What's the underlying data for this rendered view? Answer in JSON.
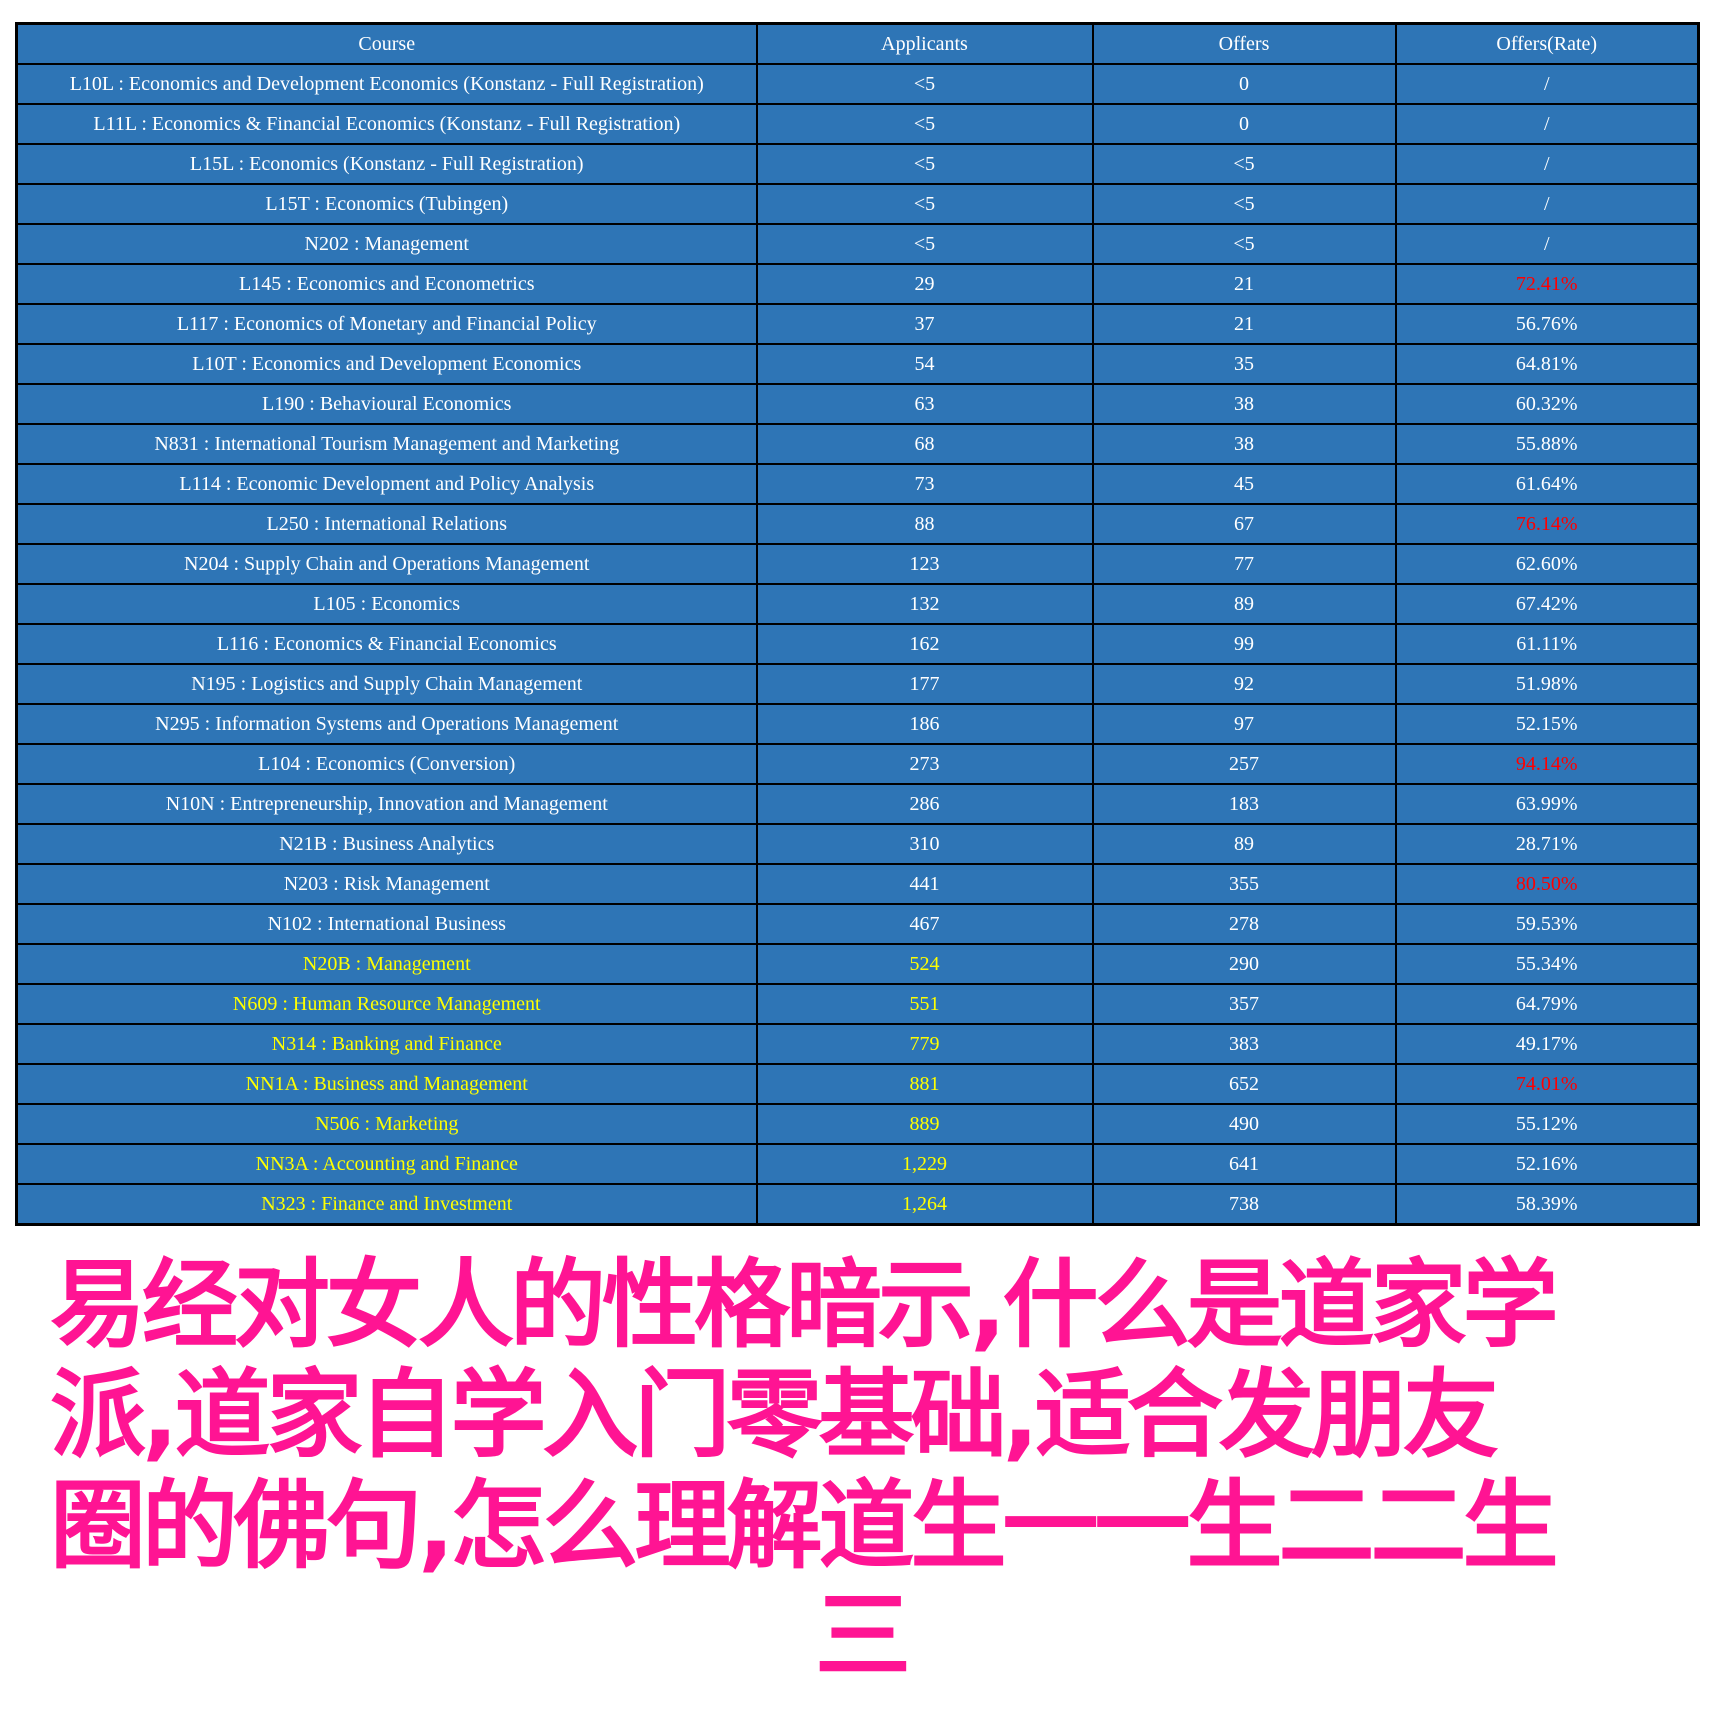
{
  "table": {
    "headers": [
      "Course",
      "Applicants",
      "Offers",
      "Offers(Rate)"
    ],
    "rows": [
      {
        "course": "L10L : Economics and Development Economics (Konstanz - Full Registration)",
        "applicants": "<5",
        "offers": "0",
        "rate": "/"
      },
      {
        "course": "L11L : Economics & Financial Economics (Konstanz - Full Registration)",
        "applicants": "<5",
        "offers": "0",
        "rate": "/"
      },
      {
        "course": "L15L : Economics (Konstanz - Full Registration)",
        "applicants": "<5",
        "offers": "<5",
        "rate": "/"
      },
      {
        "course": "L15T : Economics (Tubingen)",
        "applicants": "<5",
        "offers": "<5",
        "rate": "/"
      },
      {
        "course": "N202 : Management",
        "applicants": "<5",
        "offers": "<5",
        "rate": "/"
      },
      {
        "course": "L145 : Economics and Econometrics",
        "applicants": "29",
        "offers": "21",
        "rate": "72.41%",
        "rate_red": true
      },
      {
        "course": "L117 : Economics of Monetary and Financial Policy",
        "applicants": "37",
        "offers": "21",
        "rate": "56.76%"
      },
      {
        "course": "L10T : Economics and Development Economics",
        "applicants": "54",
        "offers": "35",
        "rate": "64.81%"
      },
      {
        "course": "L190 : Behavioural Economics",
        "applicants": "63",
        "offers": "38",
        "rate": "60.32%"
      },
      {
        "course": "N831 : International Tourism Management and Marketing",
        "applicants": "68",
        "offers": "38",
        "rate": "55.88%"
      },
      {
        "course": "L114 : Economic Development and Policy Analysis",
        "applicants": "73",
        "offers": "45",
        "rate": "61.64%"
      },
      {
        "course": "L250 : International Relations",
        "applicants": "88",
        "offers": "67",
        "rate": "76.14%",
        "rate_red": true
      },
      {
        "course": "N204 : Supply Chain and Operations Management",
        "applicants": "123",
        "offers": "77",
        "rate": "62.60%"
      },
      {
        "course": "L105 : Economics",
        "applicants": "132",
        "offers": "89",
        "rate": "67.42%"
      },
      {
        "course": "L116 : Economics & Financial Economics",
        "applicants": "162",
        "offers": "99",
        "rate": "61.11%"
      },
      {
        "course": "N195 : Logistics and Supply Chain Management",
        "applicants": "177",
        "offers": "92",
        "rate": "51.98%"
      },
      {
        "course": "N295 : Information Systems and Operations Management",
        "applicants": "186",
        "offers": "97",
        "rate": "52.15%"
      },
      {
        "course": "L104 : Economics (Conversion)",
        "applicants": "273",
        "offers": "257",
        "rate": "94.14%",
        "rate_red": true
      },
      {
        "course": "N10N : Entrepreneurship, Innovation and Management",
        "applicants": "286",
        "offers": "183",
        "rate": "63.99%"
      },
      {
        "course": "N21B : Business Analytics",
        "applicants": "310",
        "offers": "89",
        "rate": "28.71%"
      },
      {
        "course": "N203 : Risk Management",
        "applicants": "441",
        "offers": "355",
        "rate": "80.50%",
        "rate_red": true
      },
      {
        "course": "N102 : International Business",
        "applicants": "467",
        "offers": "278",
        "rate": "59.53%"
      },
      {
        "course": "N20B : Management",
        "applicants": "524",
        "offers": "290",
        "rate": "55.34%",
        "highlight": true
      },
      {
        "course": "N609 : Human Resource Management",
        "applicants": "551",
        "offers": "357",
        "rate": "64.79%",
        "highlight": true
      },
      {
        "course": "N314 : Banking and Finance",
        "applicants": "779",
        "offers": "383",
        "rate": "49.17%",
        "highlight": true
      },
      {
        "course": "NN1A : Business and Management",
        "applicants": "881",
        "offers": "652",
        "rate": "74.01%",
        "highlight": true,
        "rate_red": true
      },
      {
        "course": "N506 : Marketing",
        "applicants": "889",
        "offers": "490",
        "rate": "55.12%",
        "highlight": true
      },
      {
        "course": "NN3A : Accounting and Finance",
        "applicants": "1,229",
        "offers": "641",
        "rate": "52.16%",
        "highlight": true
      },
      {
        "course": "N323 : Finance and Investment",
        "applicants": "1,264",
        "offers": "738",
        "rate": "58.39%",
        "highlight": true
      }
    ]
  },
  "overlay": {
    "lines": [
      "易经对女人的性格暗示,什么是道家学",
      "派,道家自学入门零基础,适合发朋友",
      "圈的佛句,怎么理解道生一一生二二生",
      "三"
    ]
  },
  "colors": {
    "table_bg": "#2e75b6",
    "highlight_text": "#ffff00",
    "rate_red": "#ff0000",
    "overlay": "#ff1493"
  }
}
